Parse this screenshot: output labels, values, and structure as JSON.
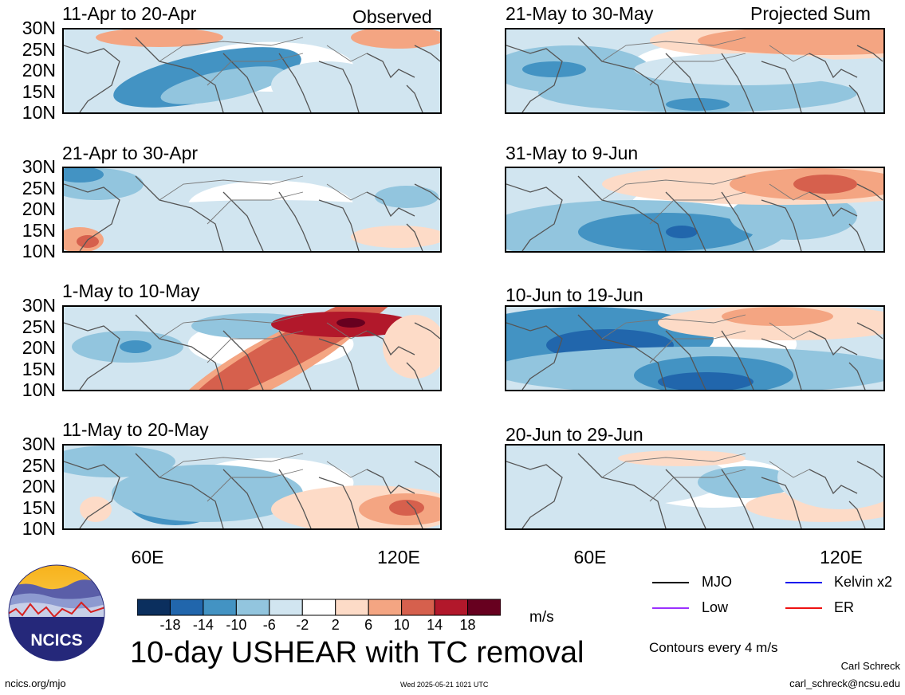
{
  "tags": {
    "observed": "Observed",
    "projected": "Projected Sum"
  },
  "panels": [
    {
      "title": "11-Apr to 20-Apr",
      "pattern": 0
    },
    {
      "title": "21-Apr to 30-Apr",
      "pattern": 1
    },
    {
      "title": "1-May to 10-May",
      "pattern": 2
    },
    {
      "title": "11-May to 20-May",
      "pattern": 3
    },
    {
      "title": "21-May to 30-May",
      "pattern": 4
    },
    {
      "title": "31-May to 9-Jun",
      "pattern": 5
    },
    {
      "title": "10-Jun to 19-Jun",
      "pattern": 6
    },
    {
      "title": "20-Jun to 29-Jun",
      "pattern": 7
    }
  ],
  "lat_labels": [
    "30N",
    "25N",
    "20N",
    "15N",
    "10N"
  ],
  "lon_labels": [
    "60E",
    "120E"
  ],
  "colorbar": {
    "colors": [
      "#0b2f5e",
      "#2166ac",
      "#4393c3",
      "#92c5de",
      "#d1e5f0",
      "#ffffff",
      "#fddbc7",
      "#f4a582",
      "#d6604d",
      "#b2182b",
      "#67001f"
    ],
    "labels": [
      "-18",
      "-14",
      "-10",
      "-6",
      "-2",
      "2",
      "6",
      "10",
      "14",
      "18"
    ],
    "units": "m/s"
  },
  "legend": [
    {
      "label": "MJO",
      "color": "#000000"
    },
    {
      "label": "Kelvin x2",
      "color": "#1010ee"
    },
    {
      "label": "Low",
      "color": "#9b30ff"
    },
    {
      "label": "ER",
      "color": "#ee1111"
    }
  ],
  "contours_note": "Contours every 4 m/s",
  "main_title": "10-day USHEAR with TC removal",
  "logo_text": "NCICS",
  "footer": {
    "url": "ncics.org/mjo",
    "timestamp": "Wed 2025-05-21 1021 UTC",
    "author": "Carl Schreck",
    "email": "carl_schreck@ncsu.edu"
  }
}
